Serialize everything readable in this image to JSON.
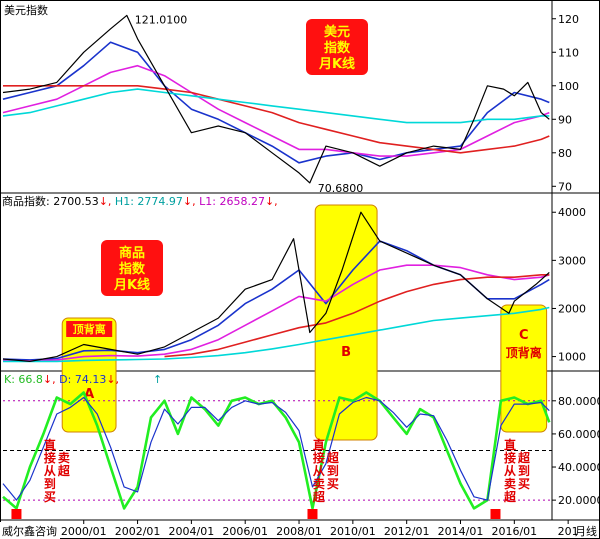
{
  "chart_data": [
    {
      "type": "line",
      "panel": "usd-index",
      "title": "美元指数",
      "badge": "美元指数月K线",
      "ylim": [
        68,
        125
      ],
      "yticks": [
        70,
        80,
        90,
        100,
        110,
        120
      ],
      "annotations": [
        {
          "text": "121.0100",
          "x": 2001.6,
          "y": 121.01
        },
        {
          "text": "70.6800",
          "x": 2008.4,
          "y": 70.68
        }
      ],
      "series": [
        {
          "name": "price",
          "color": "#000000",
          "x": [
            1997,
            1998,
            1999,
            2000,
            2001,
            2001.6,
            2002,
            2003,
            2004,
            2005,
            2006,
            2007,
            2008,
            2008.4,
            2009,
            2010,
            2011,
            2012,
            2013,
            2014,
            2014.5,
            2015,
            2015.6,
            2016,
            2016.5,
            2017,
            2017.3
          ],
          "y": [
            98,
            99,
            101,
            110,
            117,
            121,
            114,
            100,
            86,
            88,
            86,
            80,
            74,
            71,
            82,
            80,
            76,
            80,
            82,
            81,
            90,
            100,
            99,
            97,
            101,
            92,
            90
          ]
        },
        {
          "name": "ma-blue",
          "color": "#1a33cc",
          "x": [
            1997,
            1998,
            1999,
            2000,
            2001,
            2002,
            2003,
            2004,
            2005,
            2006,
            2007,
            2008,
            2009,
            2010,
            2011,
            2012,
            2013,
            2014,
            2015,
            2016,
            2017,
            2017.3
          ],
          "y": [
            96,
            98,
            100,
            106,
            113,
            110,
            100,
            93,
            90,
            86,
            82,
            77,
            79,
            80,
            78,
            80,
            81,
            82,
            92,
            98,
            96,
            95
          ]
        },
        {
          "name": "ma-magenta",
          "color": "#e020e0",
          "x": [
            1997,
            1998,
            1999,
            2000,
            2001,
            2002,
            2003,
            2004,
            2005,
            2006,
            2007,
            2008,
            2009,
            2010,
            2011,
            2012,
            2013,
            2014,
            2015,
            2016,
            2017,
            2017.3
          ],
          "y": [
            92,
            94,
            96,
            100,
            104,
            106,
            103,
            98,
            93,
            89,
            85,
            81,
            81,
            80,
            79,
            79,
            80,
            81,
            85,
            89,
            91,
            92
          ]
        },
        {
          "name": "ma-red",
          "color": "#e02020",
          "x": [
            1997,
            1998,
            1999,
            2000,
            2001,
            2002,
            2003,
            2004,
            2005,
            2006,
            2007,
            2008,
            2009,
            2010,
            2011,
            2012,
            2013,
            2014,
            2015,
            2016,
            2017,
            2017.3
          ],
          "y": [
            100,
            100,
            100,
            100,
            100,
            100,
            99,
            98,
            96,
            94,
            92,
            89,
            87,
            85,
            83,
            82,
            81,
            80,
            81,
            82,
            84,
            85
          ]
        },
        {
          "name": "ma-cyan",
          "color": "#00d8d8",
          "x": [
            1997,
            1998,
            1999,
            2000,
            2001,
            2002,
            2003,
            2004,
            2005,
            2006,
            2007,
            2008,
            2009,
            2010,
            2011,
            2012,
            2013,
            2014,
            2015,
            2016,
            2017,
            2017.3
          ],
          "y": [
            91,
            92,
            94,
            96,
            98,
            99,
            98,
            97,
            96,
            95,
            94,
            93,
            92,
            91,
            90,
            89,
            89,
            89,
            90,
            90,
            91,
            91
          ]
        }
      ]
    },
    {
      "type": "line",
      "panel": "commodity-index",
      "header": {
        "label": "商品指数:",
        "value": "2700.53",
        "h1_label": "H1:",
        "h1_value": "2774.97",
        "l1_label": "L1:",
        "l1_value": "2658.27"
      },
      "badge": "商品指数月K线",
      "ylim": [
        700,
        4400
      ],
      "yticks": [
        1000,
        2000,
        3000,
        4000
      ],
      "boxes": [
        {
          "label": "顶背离",
          "letter": "A",
          "x0": 1999.2,
          "x1": 2001.2,
          "color": "#ffff00"
        },
        {
          "label": "B",
          "x0": 2008.6,
          "x1": 2010.9,
          "color": "#ffff00"
        },
        {
          "label": "C顶背离",
          "x0": 2015.5,
          "x1": 2017.2,
          "color": "#ffff00"
        }
      ],
      "series": [
        {
          "name": "price",
          "color": "#000000",
          "x": [
            1997,
            1998,
            1999,
            2000,
            2001,
            2002,
            2003,
            2004,
            2005,
            2006,
            2007,
            2007.8,
            2008.4,
            2009,
            2009.6,
            2010.3,
            2011,
            2012,
            2013,
            2014,
            2015,
            2015.8,
            2016,
            2016.8,
            2017.3
          ],
          "y": [
            950,
            900,
            1000,
            1250,
            1150,
            1050,
            1200,
            1500,
            1800,
            2400,
            2600,
            3450,
            1500,
            1900,
            2800,
            4000,
            3400,
            3150,
            2900,
            2700,
            2200,
            1900,
            2150,
            2500,
            2750
          ]
        },
        {
          "name": "ma-blue",
          "color": "#1a33cc",
          "x": [
            1997,
            1998,
            1999,
            2000,
            2001,
            2002,
            2003,
            2004,
            2005,
            2006,
            2007,
            2008,
            2009,
            2010,
            2011,
            2012,
            2013,
            2014,
            2015,
            2016,
            2017,
            2017.3
          ],
          "y": [
            950,
            930,
            960,
            1120,
            1130,
            1080,
            1150,
            1350,
            1650,
            2100,
            2400,
            2800,
            2100,
            2800,
            3400,
            3200,
            2900,
            2700,
            2200,
            2200,
            2500,
            2600
          ]
        },
        {
          "name": "ma-magenta",
          "color": "#e020e0",
          "x": [
            1997,
            1998,
            1999,
            2000,
            2001,
            2002,
            2003,
            2004,
            2005,
            2006,
            2007,
            2008,
            2009,
            2010,
            2011,
            2012,
            2013,
            2014,
            2015,
            2016,
            2017,
            2017.3
          ],
          "y": [
            920,
            910,
            930,
            1000,
            1020,
            1010,
            1050,
            1150,
            1350,
            1650,
            1950,
            2250,
            2150,
            2500,
            2800,
            2900,
            2900,
            2850,
            2700,
            2600,
            2650,
            2700
          ]
        },
        {
          "name": "ma-red",
          "color": "#e02020",
          "x": [
            2003,
            2004,
            2005,
            2006,
            2007,
            2008,
            2009,
            2010,
            2011,
            2012,
            2013,
            2014,
            2015,
            2016,
            2017,
            2017.3
          ],
          "y": [
            1000,
            1050,
            1150,
            1300,
            1450,
            1600,
            1700,
            1900,
            2150,
            2350,
            2500,
            2600,
            2650,
            2650,
            2700,
            2700
          ]
        },
        {
          "name": "ma-cyan",
          "color": "#00d8d8",
          "x": [
            1997,
            1998,
            1999,
            2000,
            2001,
            2002,
            2003,
            2004,
            2005,
            2006,
            2007,
            2008,
            2009,
            2010,
            2011,
            2012,
            2013,
            2014,
            2015,
            2016,
            2017,
            2017.3
          ],
          "y": [
            900,
            900,
            900,
            920,
            930,
            940,
            950,
            980,
            1020,
            1080,
            1160,
            1250,
            1350,
            1450,
            1550,
            1650,
            1750,
            1800,
            1850,
            1900,
            1980,
            2020
          ]
        }
      ]
    },
    {
      "type": "line",
      "panel": "kd-indicator",
      "header": {
        "k_label": "K:",
        "k_value": "66.8",
        "d_label": "D:",
        "d_value": "74.13"
      },
      "ylim": [
        8,
        98
      ],
      "yticks": [
        20,
        40,
        60,
        80
      ],
      "ytick_labels": [
        "20.0000",
        "40.0000",
        "60.0000",
        "80.0000"
      ],
      "reference_lines": [
        20,
        50,
        80
      ],
      "signal_labels": [
        {
          "text": "直接从卖到超买",
          "x": 1999.0
        },
        {
          "text": "直接从超卖到超买",
          "x": 2009.0
        },
        {
          "text": "直接从超卖到超买",
          "x": 2016.1
        }
      ],
      "buy_markers": [
        1997.5,
        2008.5,
        2015.3
      ],
      "series": [
        {
          "name": "K",
          "color": "#22ee22",
          "x": [
            1997,
            1997.5,
            1998,
            1998.5,
            1999,
            1999.5,
            2000,
            2000.5,
            2001,
            2001.5,
            2002,
            2002.5,
            2003,
            2003.5,
            2004,
            2004.5,
            2005,
            2005.5,
            2006,
            2006.5,
            2007,
            2007.5,
            2008,
            2008.5,
            2009,
            2009.5,
            2010,
            2010.5,
            2011,
            2011.5,
            2012,
            2012.5,
            2013,
            2013.5,
            2014,
            2014.5,
            2015,
            2015.5,
            2016,
            2016.5,
            2017,
            2017.3
          ],
          "y": [
            22,
            15,
            40,
            60,
            82,
            78,
            85,
            65,
            40,
            15,
            28,
            70,
            80,
            60,
            82,
            75,
            65,
            80,
            82,
            78,
            80,
            70,
            55,
            15,
            55,
            82,
            80,
            85,
            80,
            70,
            60,
            75,
            70,
            50,
            30,
            15,
            20,
            80,
            82,
            78,
            80,
            67
          ]
        },
        {
          "name": "D",
          "color": "#1a33cc",
          "x": [
            1997,
            1997.5,
            1998,
            1998.5,
            1999,
            1999.5,
            2000,
            2000.5,
            2001,
            2001.5,
            2002,
            2002.5,
            2003,
            2003.5,
            2004,
            2004.5,
            2005,
            2005.5,
            2006,
            2006.5,
            2007,
            2007.5,
            2008,
            2008.5,
            2009,
            2009.5,
            2010,
            2010.5,
            2011,
            2011.5,
            2012,
            2012.5,
            2013,
            2013.5,
            2014,
            2014.5,
            2015,
            2015.5,
            2016,
            2016.5,
            2017,
            2017.3
          ],
          "y": [
            30,
            20,
            32,
            52,
            72,
            76,
            82,
            72,
            52,
            28,
            25,
            55,
            75,
            66,
            76,
            76,
            68,
            76,
            80,
            78,
            79,
            73,
            62,
            28,
            42,
            72,
            79,
            82,
            80,
            73,
            64,
            72,
            71,
            56,
            38,
            22,
            20,
            65,
            78,
            78,
            79,
            74
          ]
        }
      ]
    }
  ],
  "x_axis": {
    "range": [
      1997,
      2017.4
    ],
    "ticks": [
      2000,
      2002,
      2004,
      2006,
      2008,
      2010,
      2012,
      2014,
      2016,
      2018
    ],
    "tick_labels": [
      "2000/01",
      "2002/01",
      "2004/01",
      "2006/01",
      "2008/01",
      "2010/01",
      "2012/01",
      "2014/01",
      "2016/01",
      "201"
    ],
    "period_label": "月线"
  },
  "footer": {
    "brand": "威尔鑫咨询"
  }
}
